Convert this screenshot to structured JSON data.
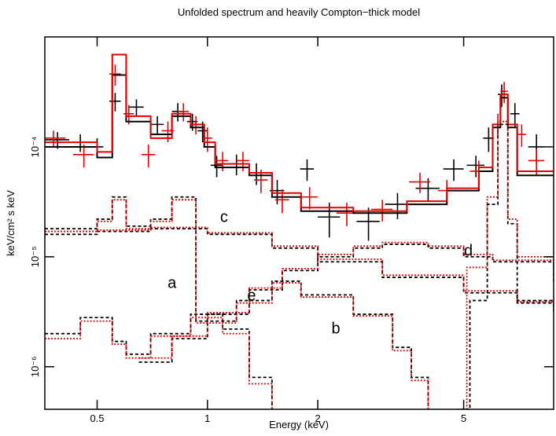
{
  "chart_data": {
    "type": "spectrum",
    "title": "Unfolded spectrum and heavily Compton−thick model",
    "xlabel": "Energy (keV)",
    "ylabel": "keV/cm² s keV",
    "xscale": "log",
    "yscale": "log",
    "xlim": [
      0.36,
      8.8
    ],
    "ylim": [
      4.1e-07,
      0.001
    ],
    "xticks": [
      0.5,
      1,
      2,
      5
    ],
    "yticks": [
      {
        "value": 1e-06,
        "label": "10⁻⁶"
      },
      {
        "value": 1e-05,
        "label": "10⁻⁵"
      },
      {
        "value": 0.0001,
        "label": "10⁻⁴"
      }
    ],
    "series": [
      {
        "style": "data",
        "color": "#000000",
        "x": [
          0.39,
          0.45,
          0.5,
          0.56,
          0.64,
          0.73,
          0.83,
          0.91,
          0.97,
          1.06,
          1.2,
          1.36,
          1.55,
          1.87,
          2.15,
          2.75,
          3.3,
          4.0,
          4.7,
          5.4,
          5.85,
          6.35,
          6.9,
          7.9
        ],
        "xerr": [
          0.03,
          0.03,
          0.02,
          0.02,
          0.03,
          0.03,
          0.03,
          0.03,
          0.03,
          0.04,
          0.05,
          0.06,
          0.07,
          0.08,
          0.15,
          0.2,
          0.25,
          0.3,
          0.3,
          0.3,
          0.2,
          0.15,
          0.2,
          0.4
        ],
        "values": [
          0.000116,
          0.00011,
          0.0001,
          0.00026,
          0.00023,
          0.00016,
          0.00021,
          0.00017,
          0.00014,
          6.8e-05,
          7e-05,
          5.8e-05,
          4e-05,
          6.3e-05,
          2.3e-05,
          2.1e-05,
          3e-05,
          4.2e-05,
          6.3e-05,
          6.8e-05,
          0.00012,
          0.0003,
          0.0002,
          0.0001
        ],
        "yerr": [
          2e-05,
          2e-05,
          2e-05,
          5e-05,
          4e-05,
          3e-05,
          4e-05,
          3e-05,
          3e-05,
          1.5e-05,
          1.5e-05,
          1.3e-05,
          1e-05,
          1.4e-05,
          8e-06,
          7e-06,
          8e-06,
          1e-05,
          1.4e-05,
          1.5e-05,
          3e-05,
          7e-05,
          5e-05,
          3e-05
        ]
      },
      {
        "style": "data",
        "color": "#e00000",
        "x": [
          0.38,
          0.46,
          0.56,
          0.61,
          0.69,
          0.78,
          0.86,
          0.93,
          1.0,
          1.1,
          1.25,
          1.4,
          1.6,
          1.9,
          2.4,
          3.0,
          3.8,
          4.5,
          5.5,
          6.2,
          6.45,
          7.2,
          7.9
        ],
        "xerr": [
          0.03,
          0.03,
          0.02,
          0.02,
          0.03,
          0.03,
          0.03,
          0.03,
          0.03,
          0.04,
          0.05,
          0.06,
          0.07,
          0.1,
          0.15,
          0.2,
          0.25,
          0.25,
          0.3,
          0.15,
          0.15,
          0.2,
          0.4
        ],
        "values": [
          0.00012,
          8.5e-05,
          0.00046,
          0.0002,
          8.5e-05,
          0.00014,
          0.00021,
          0.00016,
          0.00012,
          7.5e-05,
          7.5e-05,
          5e-05,
          3.3e-05,
          3.5e-05,
          2.5e-05,
          2.7e-05,
          4.8e-05,
          4e-05,
          6e-05,
          0.00016,
          0.00032,
          0.00013,
          7.5e-05
        ],
        "yerr": [
          2e-05,
          2e-05,
          0.0001,
          4e-05,
          2e-05,
          3e-05,
          4e-05,
          3e-05,
          3e-05,
          1.5e-05,
          1.5e-05,
          1.2e-05,
          8e-06,
          8e-06,
          6e-06,
          6e-06,
          1e-05,
          1e-05,
          1.5e-05,
          4e-05,
          7e-05,
          3e-05,
          2e-05
        ]
      },
      {
        "style": "model",
        "color": "#000000",
        "x": [
          0.36,
          0.5,
          0.55,
          0.6,
          0.7,
          0.8,
          0.9,
          0.98,
          1.05,
          1.3,
          1.5,
          1.8,
          2.5,
          3.5,
          4.5,
          5.5,
          6.0,
          6.3,
          6.6,
          7.0,
          8.8
        ],
        "values": [
          0.0001,
          8e-05,
          0.00045,
          0.00017,
          0.00013,
          0.00019,
          0.00015,
          0.0001,
          6.5e-05,
          5.5e-05,
          3.5e-05,
          2.6e-05,
          2.5e-05,
          3e-05,
          4e-05,
          6e-05,
          0.00015,
          0.00028,
          0.00015,
          5.5e-05,
          5.5e-05
        ]
      },
      {
        "style": "model",
        "color": "#e00000",
        "x": [
          0.36,
          0.5,
          0.55,
          0.6,
          0.7,
          0.8,
          0.9,
          0.98,
          1.05,
          1.3,
          1.5,
          1.8,
          2.5,
          3.5,
          4.5,
          5.5,
          6.0,
          6.3,
          6.6,
          7.0,
          8.8
        ],
        "values": [
          0.00011,
          9e-05,
          0.00069,
          0.00019,
          0.00012,
          0.0002,
          0.00016,
          0.00011,
          7e-05,
          5.8e-05,
          3.8e-05,
          2.8e-05,
          2.6e-05,
          3.2e-05,
          4.2e-05,
          6.5e-05,
          0.00016,
          0.0003,
          0.00016,
          6e-05,
          6e-05
        ]
      },
      {
        "style": "component",
        "color": "#000000",
        "x": [
          0.36,
          0.5,
          0.7,
          1.0,
          1.5,
          2.0,
          3.0,
          5.0,
          7.0,
          8.8
        ],
        "values": [
          1.6e-05,
          1.7e-05,
          1.8e-05,
          1.6e-05,
          1.2e-05,
          9e-06,
          6.5e-06,
          4.7e-06,
          3.8e-06,
          3.2e-06
        ]
      },
      {
        "style": "component",
        "color": "#e00000",
        "x": [
          0.36,
          0.5,
          0.7,
          1.0,
          1.5,
          2.0,
          3.0,
          5.0,
          7.0,
          8.8
        ],
        "values": [
          1.7e-05,
          1.75e-05,
          1.85e-05,
          1.65e-05,
          1.25e-05,
          9.5e-06,
          6.8e-06,
          4.9e-06,
          3.9e-06,
          3.3e-06
        ]
      },
      {
        "style": "component",
        "color": "#000000",
        "x": [
          0.65,
          0.8,
          1.0,
          1.3,
          1.6,
          2.0,
          2.5,
          3.0,
          4.0,
          5.0,
          6.0,
          8.8
        ],
        "values": [
          1.1e-06,
          1.8e-06,
          3e-06,
          5e-06,
          7.5e-06,
          1e-05,
          1.2e-05,
          1.3e-05,
          1.2e-05,
          1e-05,
          9e-06,
          6e-06
        ]
      },
      {
        "style": "component",
        "color": "#e00000",
        "x": [
          0.65,
          0.8,
          1.0,
          1.3,
          1.6,
          2.0,
          2.5,
          3.0,
          4.0,
          5.0,
          6.0,
          8.8
        ],
        "values": [
          1.2e-06,
          1.9e-06,
          3.1e-06,
          5.2e-06,
          7.8e-06,
          1.05e-05,
          1.25e-05,
          1.35e-05,
          1.25e-05,
          1.05e-05,
          9.3e-06,
          6.2e-06
        ]
      },
      {
        "style": "component",
        "color": "#000000",
        "x": [
          0.36,
          0.45,
          0.55,
          0.6,
          0.7,
          0.9,
          1.1,
          1.3,
          1.5
        ],
        "values": [
          2e-06,
          2.8e-06,
          1.7e-06,
          1.3e-06,
          2e-06,
          3e-06,
          2.2e-06,
          8e-07,
          4e-07
        ]
      },
      {
        "style": "component",
        "color": "#e00000",
        "x": [
          0.36,
          0.45,
          0.55,
          0.6,
          0.7,
          0.9,
          1.1,
          1.3,
          1.5
        ],
        "values": [
          1.8e-06,
          2.6e-06,
          1.6e-06,
          1.2e-06,
          1.9e-06,
          2.8e-06,
          2e-06,
          7e-07,
          3.5e-07
        ]
      },
      {
        "style": "component",
        "color": "#000000",
        "x": [
          0.36,
          0.5,
          0.55,
          0.6,
          0.7,
          0.8,
          0.93,
          1.2,
          1.5,
          1.8,
          2.5,
          3.2,
          3.6,
          4.0
        ],
        "values": [
          1.8e-05,
          2.2e-05,
          3.5e-05,
          1.9e-05,
          2.2e-05,
          3.5e-05,
          2.6e-06,
          4e-06,
          6e-06,
          4.5e-06,
          3e-06,
          1.5e-06,
          8e-07,
          4e-07
        ]
      },
      {
        "style": "component",
        "color": "#e00000",
        "x": [
          0.36,
          0.5,
          0.55,
          0.6,
          0.7,
          0.8,
          0.93,
          1.2,
          1.5,
          1.8,
          2.5,
          3.2,
          3.6,
          4.0
        ],
        "values": [
          1.7e-05,
          2.1e-05,
          3.3e-05,
          1.8e-05,
          2.1e-05,
          3.3e-05,
          2.5e-06,
          3.8e-06,
          5.8e-06,
          4.3e-06,
          2.9e-06,
          1.4e-06,
          7.5e-07,
          3.8e-07
        ]
      },
      {
        "style": "component",
        "color": "#000000",
        "x": [
          4.9,
          5.2,
          5.8,
          6.2,
          6.6,
          7.0,
          8.8
        ],
        "values": [
          4.1e-07,
          4e-06,
          3e-05,
          0.00016,
          2e-05,
          4e-06,
          4e-06
        ]
      },
      {
        "style": "component",
        "color": "#e00000",
        "x": [
          4.8,
          5.1,
          5.8,
          6.2,
          6.6,
          7.0,
          8.8
        ],
        "values": [
          4.1e-07,
          8e-06,
          3.5e-05,
          0.00017,
          2.2e-05,
          1e-05,
          1e-05
        ]
      }
    ],
    "annotations": [
      {
        "text": "a",
        "x": 0.8,
        "y": 5.2e-06
      },
      {
        "text": "b",
        "x": 2.24,
        "y": 2e-06
      },
      {
        "text": "c",
        "x": 1.11,
        "y": 2.07e-05
      },
      {
        "text": "d",
        "x": 5.15,
        "y": 1.02e-05
      },
      {
        "text": "e",
        "x": 1.32,
        "y": 4e-06
      }
    ]
  }
}
